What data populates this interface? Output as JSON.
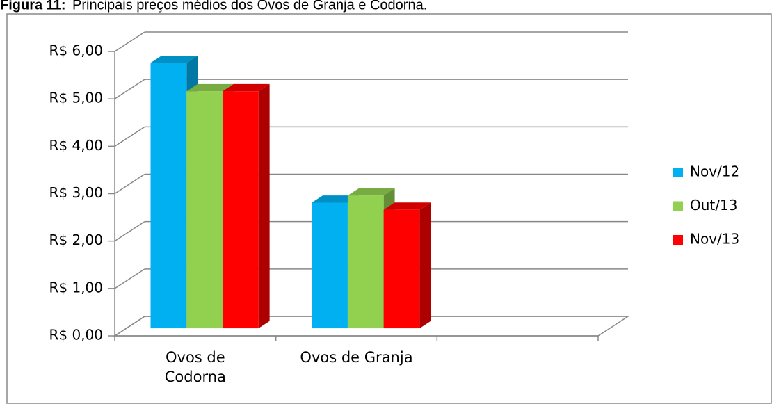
{
  "chart_data": {
    "type": "bar3d",
    "figure_label": "Figura 11:",
    "title": "Principais preços médios dos Ovos de Granja e Codorna.",
    "categories": [
      "Ovos de Codorna",
      "Ovos de Granja",
      null
    ],
    "series": [
      {
        "name": "Nov/12",
        "color": "#00b0f0",
        "values": [
          5.6,
          2.65,
          null
        ]
      },
      {
        "name": "Out/13",
        "color": "#92d050",
        "values": [
          5.0,
          2.8,
          null
        ]
      },
      {
        "name": "Nov/13",
        "color": "#ff0000",
        "values": [
          5.0,
          2.5,
          null
        ]
      }
    ],
    "ylim": [
      0,
      6
    ],
    "yticks": [
      {
        "value": 0,
        "label": "R$ 0,00"
      },
      {
        "value": 1,
        "label": "R$ 1,00"
      },
      {
        "value": 2,
        "label": "R$ 2,00"
      },
      {
        "value": 3,
        "label": "R$ 3,00"
      },
      {
        "value": 4,
        "label": "R$ 4,00"
      },
      {
        "value": 5,
        "label": "R$ 5,00"
      },
      {
        "value": 6,
        "label": "R$ 6,00"
      }
    ],
    "grid": true,
    "legend": "right"
  }
}
